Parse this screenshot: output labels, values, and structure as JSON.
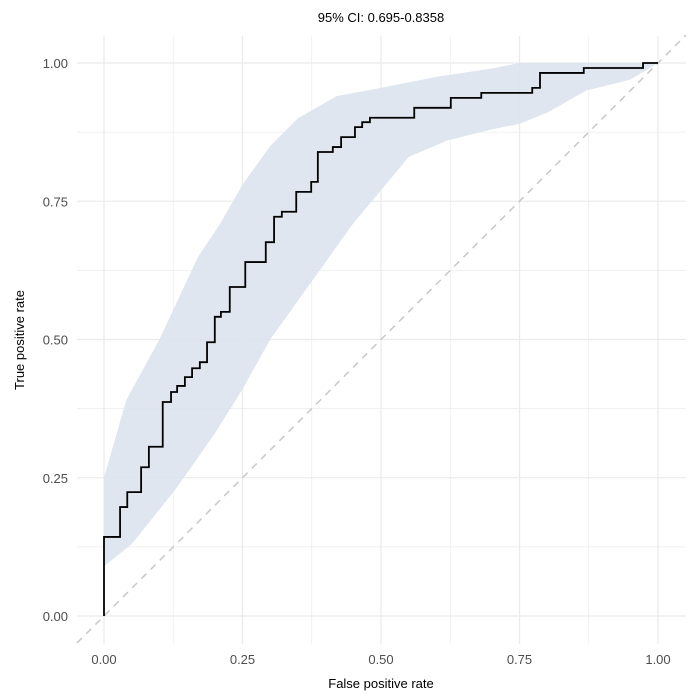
{
  "chart_data": {
    "type": "line",
    "title": "95% CI: 0.695-0.8358",
    "xlabel": "False positive rate",
    "ylabel": "True positive rate",
    "xlim": [
      0,
      1
    ],
    "ylim": [
      0,
      1
    ],
    "xticks": [
      "0.00",
      "0.25",
      "0.50",
      "0.75",
      "1.00"
    ],
    "yticks": [
      "0.00",
      "0.25",
      "0.50",
      "0.75",
      "1.00"
    ],
    "grid": true,
    "colors": {
      "curve": "#000000",
      "band": "#dce3ed",
      "diagonal": "#c8c8c8",
      "grid": "#ebebeb"
    },
    "roc_step_points": [
      [
        0,
        0
      ],
      [
        0,
        0.143
      ],
      [
        0.029,
        0.143
      ],
      [
        0.029,
        0.197
      ],
      [
        0.042,
        0.197
      ],
      [
        0.042,
        0.224
      ],
      [
        0.067,
        0.224
      ],
      [
        0.067,
        0.269
      ],
      [
        0.081,
        0.269
      ],
      [
        0.081,
        0.306
      ],
      [
        0.106,
        0.306
      ],
      [
        0.106,
        0.387
      ],
      [
        0.121,
        0.387
      ],
      [
        0.121,
        0.405
      ],
      [
        0.132,
        0.405
      ],
      [
        0.132,
        0.416
      ],
      [
        0.146,
        0.416
      ],
      [
        0.146,
        0.432
      ],
      [
        0.159,
        0.432
      ],
      [
        0.159,
        0.448
      ],
      [
        0.173,
        0.448
      ],
      [
        0.173,
        0.459
      ],
      [
        0.186,
        0.459
      ],
      [
        0.186,
        0.495
      ],
      [
        0.2,
        0.495
      ],
      [
        0.2,
        0.541
      ],
      [
        0.211,
        0.541
      ],
      [
        0.211,
        0.55
      ],
      [
        0.227,
        0.55
      ],
      [
        0.227,
        0.595
      ],
      [
        0.255,
        0.595
      ],
      [
        0.255,
        0.64
      ],
      [
        0.292,
        0.64
      ],
      [
        0.292,
        0.676
      ],
      [
        0.307,
        0.676
      ],
      [
        0.307,
        0.722
      ],
      [
        0.321,
        0.722
      ],
      [
        0.321,
        0.731
      ],
      [
        0.347,
        0.731
      ],
      [
        0.347,
        0.767
      ],
      [
        0.374,
        0.767
      ],
      [
        0.374,
        0.785
      ],
      [
        0.386,
        0.785
      ],
      [
        0.386,
        0.839
      ],
      [
        0.413,
        0.839
      ],
      [
        0.413,
        0.848
      ],
      [
        0.428,
        0.848
      ],
      [
        0.428,
        0.866
      ],
      [
        0.453,
        0.866
      ],
      [
        0.453,
        0.884
      ],
      [
        0.466,
        0.884
      ],
      [
        0.466,
        0.893
      ],
      [
        0.48,
        0.893
      ],
      [
        0.48,
        0.901
      ],
      [
        0.56,
        0.901
      ],
      [
        0.56,
        0.919
      ],
      [
        0.626,
        0.919
      ],
      [
        0.626,
        0.937
      ],
      [
        0.681,
        0.937
      ],
      [
        0.681,
        0.946
      ],
      [
        0.773,
        0.946
      ],
      [
        0.773,
        0.955
      ],
      [
        0.787,
        0.955
      ],
      [
        0.787,
        0.982
      ],
      [
        0.866,
        0.982
      ],
      [
        0.866,
        0.991
      ],
      [
        0.973,
        0.991
      ],
      [
        0.973,
        1
      ],
      [
        1,
        1
      ]
    ],
    "ci_upper": [
      [
        0,
        0.25
      ],
      [
        0.04,
        0.39
      ],
      [
        0.1,
        0.5
      ],
      [
        0.17,
        0.65
      ],
      [
        0.21,
        0.71
      ],
      [
        0.25,
        0.78
      ],
      [
        0.3,
        0.85
      ],
      [
        0.35,
        0.9
      ],
      [
        0.42,
        0.94
      ],
      [
        0.5,
        0.955
      ],
      [
        0.6,
        0.975
      ],
      [
        0.7,
        0.99
      ],
      [
        0.75,
        1
      ],
      [
        1,
        1
      ]
    ],
    "ci_lower": [
      [
        0,
        0.09
      ],
      [
        0.05,
        0.13
      ],
      [
        0.13,
        0.23
      ],
      [
        0.2,
        0.33
      ],
      [
        0.25,
        0.41
      ],
      [
        0.3,
        0.5
      ],
      [
        0.35,
        0.57
      ],
      [
        0.4,
        0.64
      ],
      [
        0.45,
        0.71
      ],
      [
        0.5,
        0.77
      ],
      [
        0.55,
        0.83
      ],
      [
        0.62,
        0.86
      ],
      [
        0.7,
        0.88
      ],
      [
        0.75,
        0.89
      ],
      [
        0.8,
        0.91
      ],
      [
        0.87,
        0.95
      ],
      [
        0.95,
        0.97
      ],
      [
        1,
        1
      ]
    ]
  }
}
